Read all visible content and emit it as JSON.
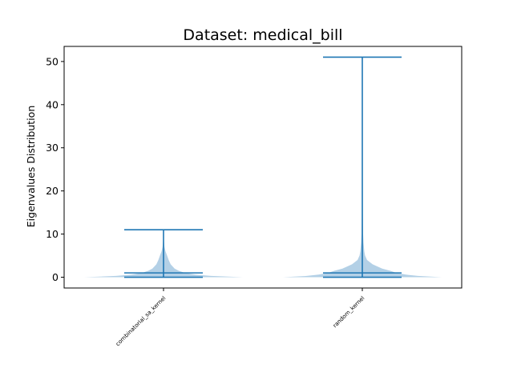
{
  "chart_data": {
    "type": "violin",
    "title": "Dataset: medical_bill",
    "xlabel": "",
    "ylabel": "Eigenvalues Distribution",
    "ylim": [
      -2.5,
      53.5
    ],
    "yticks": [
      0,
      10,
      20,
      30,
      40,
      50
    ],
    "categories": [
      "combinatorial_sa_kernel",
      "random_kernel"
    ],
    "series": [
      {
        "name": "combinatorial_sa_kernel",
        "min": 0,
        "median": 1,
        "max": 11,
        "density_profile": [
          [
            0,
            1.0
          ],
          [
            0.3,
            0.6
          ],
          [
            0.6,
            0.4
          ],
          [
            1,
            0.27
          ],
          [
            1.5,
            0.19
          ],
          [
            2,
            0.14
          ],
          [
            3,
            0.09
          ],
          [
            4,
            0.065
          ],
          [
            5,
            0.045
          ],
          [
            6,
            0.025
          ],
          [
            7,
            0.012
          ],
          [
            8,
            0.007
          ],
          [
            9,
            0.004
          ],
          [
            10,
            0.0025
          ],
          [
            11,
            0.001
          ]
        ]
      },
      {
        "name": "random_kernel",
        "min": 0,
        "median": 1,
        "max": 51,
        "density_profile": [
          [
            0,
            1.0
          ],
          [
            0.3,
            0.7
          ],
          [
            0.6,
            0.55
          ],
          [
            1,
            0.43
          ],
          [
            1.5,
            0.35
          ],
          [
            2,
            0.25
          ],
          [
            3,
            0.13
          ],
          [
            4,
            0.06
          ],
          [
            5,
            0.035
          ],
          [
            6,
            0.025
          ],
          [
            8,
            0.015
          ],
          [
            10,
            0.01
          ],
          [
            15,
            0.007
          ],
          [
            20,
            0.006
          ],
          [
            30,
            0.005
          ],
          [
            35,
            0.004
          ],
          [
            40,
            0.003
          ],
          [
            45,
            0.002
          ],
          [
            51,
            0.001
          ]
        ]
      }
    ],
    "colors": {
      "body": "#a6c8e2",
      "line": "#1f77b4",
      "frame": "#000000"
    }
  }
}
